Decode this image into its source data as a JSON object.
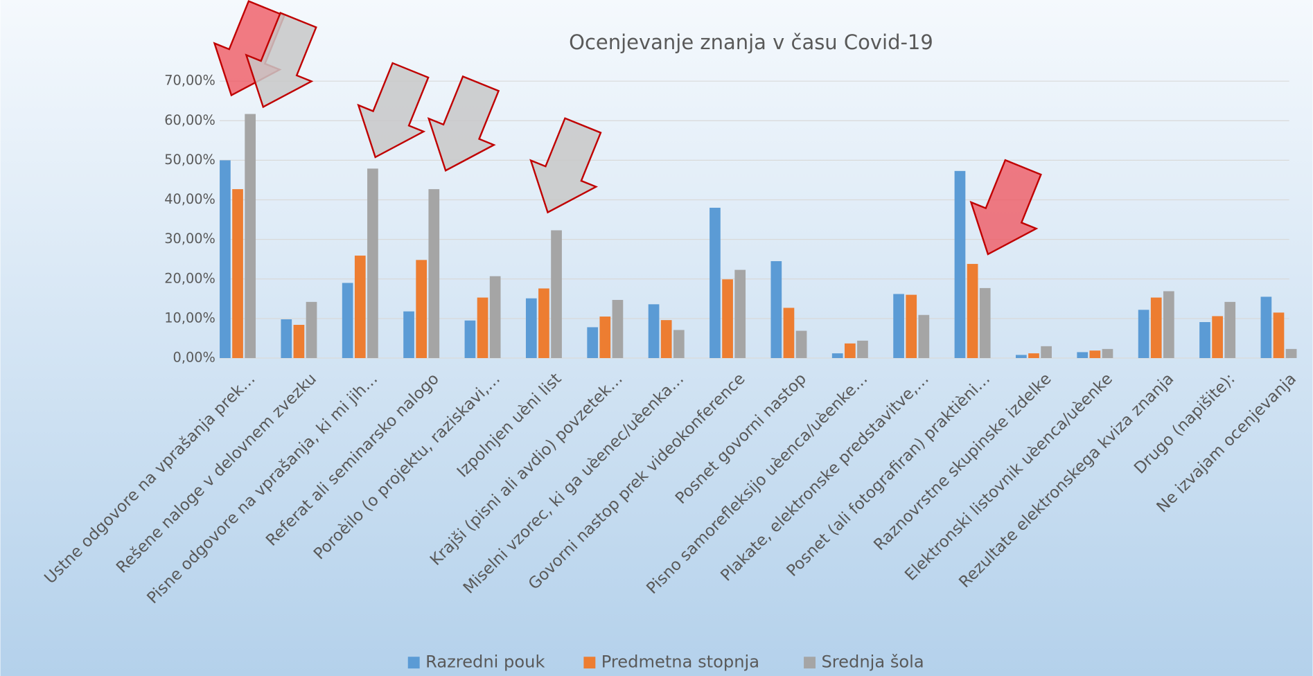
{
  "chart_data": {
    "type": "bar",
    "title": "Ocenjevanje znanja v času Covid-19",
    "categories": [
      "Ustne odgovore na vprašanja prek…",
      "Rešene naloge v delovnem zvezku",
      "Pisne odgovore na vprašanja, ki mi jih…",
      "Referat ali seminarsko nalogo",
      "Poroèilo (o projektu, raziskavi,…",
      "Izpolnjen uèni list",
      "Krajši (pisni ali avdio) povzetek…",
      "Miselni vzorec, ki ga uèenec/uèenka…",
      "Govorni nastop prek videokonference",
      "Posnet govorni nastop",
      "Pisno samorefleksijo uèenca/uèenke…",
      "Plakate, elektronske predstavitve,…",
      "Posnet (ali fotografiran) praktièni…",
      "Raznovrstne skupinske izdelke",
      "Elektronski listovnik uèenca/uèenke",
      "Rezultate elektronskega kviza znanja",
      "Drugo (napišite):",
      "Ne izvajam ocenjevanja"
    ],
    "series": [
      {
        "name": "Razredni pouk",
        "color": "#5b9bd5",
        "values": [
          50,
          9.8,
          19,
          11.8,
          9.5,
          15.1,
          7.8,
          13.6,
          38,
          24.5,
          1.2,
          16.2,
          47.3,
          0.8,
          1.5,
          12.2,
          9.1,
          15.5
        ]
      },
      {
        "name": "Predmetna stopnja",
        "color": "#ed7d31",
        "values": [
          42.7,
          8.4,
          25.9,
          24.8,
          15.3,
          17.6,
          10.5,
          9.6,
          19.9,
          12.7,
          3.7,
          16,
          23.8,
          1.2,
          1.9,
          15.3,
          10.6,
          11.5
        ]
      },
      {
        "name": "Srednja šola",
        "color": "#a5a5a5",
        "values": [
          61.7,
          14.2,
          47.9,
          42.7,
          20.7,
          32.3,
          14.7,
          7.1,
          22.3,
          6.9,
          4.4,
          10.9,
          17.7,
          3,
          2.3,
          16.9,
          14.2,
          2.3
        ]
      }
    ],
    "ylim": [
      0,
      70
    ],
    "yticks": [
      {
        "value": 0,
        "label": "0,00%"
      },
      {
        "value": 10,
        "label": "10,00%"
      },
      {
        "value": 20,
        "label": "20,00%"
      },
      {
        "value": 30,
        "label": "30,00%"
      },
      {
        "value": 40,
        "label": "40,00%"
      },
      {
        "value": 50,
        "label": "50,00%"
      },
      {
        "value": 60,
        "label": "60,00%"
      },
      {
        "value": 70,
        "label": "70,00%"
      }
    ],
    "grid": true,
    "legend": "bottom"
  }
}
